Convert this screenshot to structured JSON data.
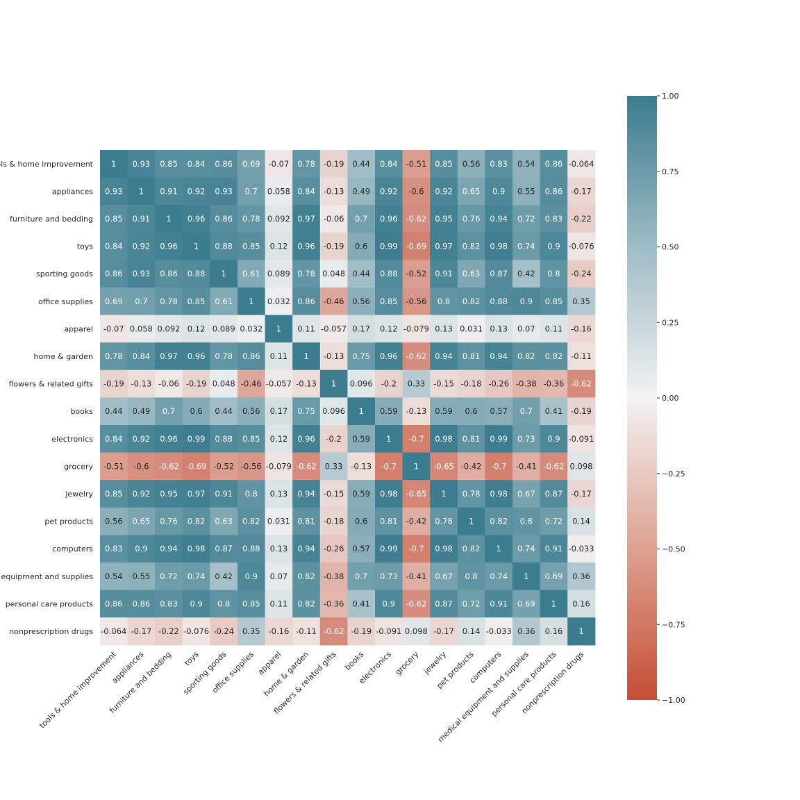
{
  "chart_data": {
    "type": "heatmap",
    "title": "",
    "xlabel": "",
    "ylabel": "",
    "labels": [
      "tools & home improvement",
      "appliances",
      "furniture and bedding",
      "toys",
      "sporting goods",
      "office supplies",
      "apparel",
      "home & garden",
      "flowers & related gifts",
      "books",
      "electronics",
      "grocery",
      "jewelry",
      "pet products",
      "computers",
      "medical equipment and supplies",
      "personal care products",
      "nonprescription drugs"
    ],
    "values": [
      [
        "1",
        "0.93",
        "0.85",
        "0.84",
        "0.86",
        "0.69",
        "-0.07",
        "0.78",
        "-0.19",
        "0.44",
        "0.84",
        "-0.51",
        "0.85",
        "0.56",
        "0.83",
        "0.54",
        "0.86",
        "-0.064"
      ],
      [
        "0.93",
        "1",
        "0.91",
        "0.92",
        "0.93",
        "0.7",
        "0.058",
        "0.84",
        "-0.13",
        "0.49",
        "0.92",
        "-0.6",
        "0.92",
        "0.65",
        "0.9",
        "0.55",
        "0.86",
        "-0.17"
      ],
      [
        "0.85",
        "0.91",
        "1",
        "0.96",
        "0.86",
        "0.78",
        "0.092",
        "0.97",
        "-0.06",
        "0.7",
        "0.96",
        "-0.62",
        "0.95",
        "0.76",
        "0.94",
        "0.72",
        "0.83",
        "-0.22"
      ],
      [
        "0.84",
        "0.92",
        "0.96",
        "1",
        "0.88",
        "0.85",
        "0.12",
        "0.96",
        "-0.19",
        "0.6",
        "0.99",
        "-0.69",
        "0.97",
        "0.82",
        "0.98",
        "0.74",
        "0.9",
        "-0.076"
      ],
      [
        "0.86",
        "0.93",
        "0.86",
        "0.88",
        "1",
        "0.61",
        "0.089",
        "0.78",
        "0.048",
        "0.44",
        "0.88",
        "-0.52",
        "0.91",
        "0.63",
        "0.87",
        "0.42",
        "0.8",
        "-0.24"
      ],
      [
        "0.69",
        "0.7",
        "0.78",
        "0.85",
        "0.61",
        "1",
        "0.032",
        "0.86",
        "-0.46",
        "0.56",
        "0.85",
        "-0.56",
        "0.8",
        "0.82",
        "0.88",
        "0.9",
        "0.85",
        "0.35"
      ],
      [
        "-0.07",
        "0.058",
        "0.092",
        "0.12",
        "0.089",
        "0.032",
        "1",
        "0.11",
        "-0.057",
        "0.17",
        "0.12",
        "-0.079",
        "0.13",
        "0.031",
        "0.13",
        "0.07",
        "0.11",
        "-0.16"
      ],
      [
        "0.78",
        "0.84",
        "0.97",
        "0.96",
        "0.78",
        "0.86",
        "0.11",
        "1",
        "-0.13",
        "0.75",
        "0.96",
        "-0.62",
        "0.94",
        "0.81",
        "0.94",
        "0.82",
        "0.82",
        "-0.11"
      ],
      [
        "-0.19",
        "-0.13",
        "-0.06",
        "-0.19",
        "0.048",
        "-0.46",
        "-0.057",
        "-0.13",
        "1",
        "0.096",
        "-0.2",
        "0.33",
        "-0.15",
        "-0.18",
        "-0.26",
        "-0.38",
        "-0.36",
        "-0.62"
      ],
      [
        "0.44",
        "0.49",
        "0.7",
        "0.6",
        "0.44",
        "0.56",
        "0.17",
        "0.75",
        "0.096",
        "1",
        "0.59",
        "-0.13",
        "0.59",
        "0.6",
        "0.57",
        "0.7",
        "0.41",
        "-0.19"
      ],
      [
        "0.84",
        "0.92",
        "0.96",
        "0.99",
        "0.88",
        "0.85",
        "0.12",
        "0.96",
        "-0.2",
        "0.59",
        "1",
        "-0.7",
        "0.98",
        "0.81",
        "0.99",
        "0.73",
        "0.9",
        "-0.091"
      ],
      [
        "-0.51",
        "-0.6",
        "-0.62",
        "-0.69",
        "-0.52",
        "-0.56",
        "-0.079",
        "-0.62",
        "0.33",
        "-0.13",
        "-0.7",
        "1",
        "-0.65",
        "-0.42",
        "-0.7",
        "-0.41",
        "-0.62",
        "0.098"
      ],
      [
        "0.85",
        "0.92",
        "0.95",
        "0.97",
        "0.91",
        "0.8",
        "0.13",
        "0.94",
        "-0.15",
        "0.59",
        "0.98",
        "-0.65",
        "1",
        "0.78",
        "0.98",
        "0.67",
        "0.87",
        "-0.17"
      ],
      [
        "0.56",
        "0.65",
        "0.76",
        "0.82",
        "0.63",
        "0.82",
        "0.031",
        "0.81",
        "-0.18",
        "0.6",
        "0.81",
        "-0.42",
        "0.78",
        "1",
        "0.82",
        "0.8",
        "0.72",
        "0.14"
      ],
      [
        "0.83",
        "0.9",
        "0.94",
        "0.98",
        "0.87",
        "0.88",
        "0.13",
        "0.94",
        "-0.26",
        "0.57",
        "0.99",
        "-0.7",
        "0.98",
        "0.82",
        "1",
        "0.74",
        "0.91",
        "-0.033"
      ],
      [
        "0.54",
        "0.55",
        "0.72",
        "0.74",
        "0.42",
        "0.9",
        "0.07",
        "0.82",
        "-0.38",
        "0.7",
        "0.73",
        "-0.41",
        "0.67",
        "0.8",
        "0.74",
        "1",
        "0.69",
        "0.36"
      ],
      [
        "0.86",
        "0.86",
        "0.83",
        "0.9",
        "0.8",
        "0.85",
        "0.11",
        "0.82",
        "-0.36",
        "0.41",
        "0.9",
        "-0.62",
        "0.87",
        "0.72",
        "0.91",
        "0.69",
        "1",
        "0.16"
      ],
      [
        "-0.064",
        "-0.17",
        "-0.22",
        "-0.076",
        "-0.24",
        "0.35",
        "-0.16",
        "-0.11",
        "-0.62",
        "-0.19",
        "-0.091",
        "0.098",
        "-0.17",
        "0.14",
        "-0.033",
        "0.36",
        "0.16",
        "1"
      ]
    ],
    "colorbar": {
      "range": [
        -1,
        1
      ],
      "ticks": [
        "1.00",
        "0.75",
        "0.50",
        "0.25",
        "0.00",
        "−0.25",
        "−0.50",
        "−0.75",
        "−1.00"
      ],
      "tick_values": [
        1,
        0.75,
        0.5,
        0.25,
        0,
        -0.25,
        -0.5,
        -0.75,
        -1
      ],
      "colormap": "diverging red-to-teal",
      "negative_color": "#c44e34",
      "center_color": "#f2f2f2",
      "positive_color": "#3b7c8e"
    },
    "legend": "colorbar right",
    "grid": false
  }
}
